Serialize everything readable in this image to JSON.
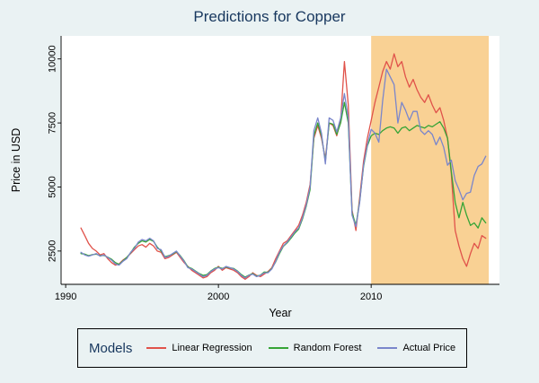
{
  "colors": {
    "background": "#eaf2f3",
    "title": "#17375e",
    "axis": "#000000",
    "plot_background": "#ffffff"
  },
  "chart_data": {
    "type": "line",
    "title": "Predictions for Copper",
    "xlabel": "Year",
    "ylabel": "Price in USD",
    "legend_title": "Models",
    "legend_position": "bottom",
    "grid": false,
    "xlim": [
      1989.7,
      2018.4
    ],
    "ylim": [
      1200,
      10900
    ],
    "x_ticks": [
      1990,
      2000,
      2010
    ],
    "y_ticks": [
      2500,
      5000,
      7500,
      10000
    ],
    "shaded_region": {
      "x0": 2010,
      "x1": 2017.7,
      "color": "#f9d194"
    },
    "x": {
      "start": 1991,
      "step": 0.25,
      "count": 107
    },
    "series": [
      {
        "name": "Linear Regression",
        "color": "#e0524a",
        "values": [
          3400,
          3100,
          2800,
          2600,
          2500,
          2350,
          2400,
          2200,
          2050,
          1950,
          2000,
          2150,
          2250,
          2400,
          2550,
          2700,
          2750,
          2650,
          2800,
          2700,
          2500,
          2450,
          2200,
          2250,
          2350,
          2450,
          2250,
          2050,
          1900,
          1750,
          1650,
          1550,
          1450,
          1500,
          1650,
          1750,
          1900,
          1750,
          1850,
          1800,
          1750,
          1650,
          1500,
          1400,
          1500,
          1650,
          1550,
          1500,
          1600,
          1700,
          1850,
          2200,
          2500,
          2800,
          2900,
          3100,
          3300,
          3500,
          3900,
          4400,
          5100,
          6900,
          7400,
          6900,
          6100,
          7500,
          7400,
          7000,
          7600,
          9900,
          8200,
          4100,
          3300,
          4600,
          6000,
          6900,
          7600,
          8300,
          8900,
          9500,
          9900,
          9600,
          10200,
          9700,
          9900,
          9300,
          8900,
          9200,
          8800,
          8500,
          8300,
          8600,
          8200,
          7900,
          8100,
          7600,
          6900,
          5500,
          3300,
          2700,
          2200,
          1900,
          2400,
          2800,
          2600,
          3100,
          3000
        ]
      },
      {
        "name": "Random Forest",
        "color": "#36a436",
        "values": [
          2400,
          2380,
          2320,
          2360,
          2380,
          2320,
          2330,
          2260,
          2180,
          2050,
          1980,
          2120,
          2250,
          2430,
          2650,
          2800,
          2900,
          2850,
          2950,
          2880,
          2650,
          2500,
          2280,
          2320,
          2380,
          2480,
          2320,
          2120,
          1880,
          1820,
          1720,
          1620,
          1550,
          1580,
          1720,
          1820,
          1870,
          1820,
          1880,
          1840,
          1820,
          1720,
          1580,
          1480,
          1560,
          1620,
          1520,
          1560,
          1680,
          1670,
          1820,
          2080,
          2400,
          2680,
          2820,
          3000,
          3200,
          3350,
          3750,
          4250,
          4900,
          7000,
          7500,
          7000,
          6000,
          7500,
          7450,
          7050,
          7500,
          8300,
          7500,
          4000,
          3500,
          4450,
          5800,
          6600,
          7000,
          7100,
          7050,
          7200,
          7300,
          7350,
          7300,
          7100,
          7300,
          7350,
          7200,
          7300,
          7400,
          7350,
          7300,
          7400,
          7350,
          7450,
          7550,
          7300,
          6900,
          5600,
          4400,
          3800,
          4400,
          3900,
          3500,
          3600,
          3400,
          3800,
          3600
        ]
      },
      {
        "name": "Actual Price",
        "color": "#7a86cb",
        "values": [
          2450,
          2350,
          2300,
          2350,
          2400,
          2300,
          2350,
          2250,
          2150,
          2000,
          1950,
          2100,
          2200,
          2450,
          2600,
          2850,
          2950,
          2900,
          3000,
          2900,
          2600,
          2550,
          2250,
          2300,
          2400,
          2500,
          2300,
          2100,
          1850,
          1800,
          1700,
          1600,
          1500,
          1550,
          1700,
          1800,
          1850,
          1800,
          1900,
          1850,
          1800,
          1700,
          1550,
          1450,
          1550,
          1600,
          1500,
          1550,
          1650,
          1650,
          1800,
          2100,
          2450,
          2700,
          2850,
          3050,
          3250,
          3400,
          3800,
          4300,
          5000,
          7200,
          7700,
          7100,
          5900,
          7700,
          7600,
          7150,
          7700,
          8650,
          7700,
          3900,
          3450,
          4400,
          5850,
          6650,
          7250,
          7100,
          6750,
          8350,
          9600,
          9300,
          9000,
          7500,
          8300,
          8000,
          7600,
          7950,
          7950,
          7200,
          7050,
          7200,
          7050,
          6650,
          6950,
          6550,
          5850,
          6050,
          5250,
          4900,
          4500,
          4750,
          4800,
          5450,
          5800,
          5900,
          6200
        ]
      }
    ]
  }
}
